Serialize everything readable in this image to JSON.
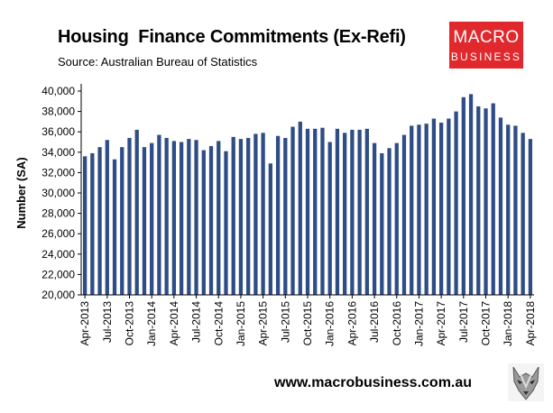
{
  "header": {
    "title": "Housing  Finance Commitments (Ex-Refi)",
    "source": "Source: Australian Bureau of Statistics"
  },
  "logo": {
    "line1": "MACRO",
    "line2": "BUSINESS"
  },
  "footer": {
    "website": "www.macrobusiness.com.au",
    "mascot_icon": "wolf-head-icon"
  },
  "colors": {
    "bar": "#2e4d86",
    "axis": "#000000",
    "logo_bg": "#e0282d"
  },
  "chart_data": {
    "type": "bar",
    "title": "Housing  Finance Commitments (Ex-Refi)",
    "ylabel": "Number (SA)",
    "xlabel": "",
    "ylim": [
      20000,
      40000
    ],
    "yticks": [
      "20,000",
      "22,000",
      "24,000",
      "26,000",
      "28,000",
      "30,000",
      "32,000",
      "34,000",
      "36,000",
      "38,000",
      "40,000"
    ],
    "grid": false,
    "legend": "none",
    "tick_labels": [
      "Apr-2013",
      "Jul-2013",
      "Oct-2013",
      "Jan-2014",
      "Apr-2014",
      "Jul-2014",
      "Oct-2014",
      "Jan-2015",
      "Apr-2015",
      "Jul-2015",
      "Oct-2015",
      "Jan-2016",
      "Apr-2016",
      "Jul-2016",
      "Oct-2016",
      "Jan-2017",
      "Apr-2017",
      "Jul-2017",
      "Oct-2017",
      "Jan-2018",
      "Apr-2018"
    ],
    "categories": [
      "Apr-2013",
      "May-2013",
      "Jun-2013",
      "Jul-2013",
      "Aug-2013",
      "Sep-2013",
      "Oct-2013",
      "Nov-2013",
      "Dec-2013",
      "Jan-2014",
      "Feb-2014",
      "Mar-2014",
      "Apr-2014",
      "May-2014",
      "Jun-2014",
      "Jul-2014",
      "Aug-2014",
      "Sep-2014",
      "Oct-2014",
      "Nov-2014",
      "Dec-2014",
      "Jan-2015",
      "Feb-2015",
      "Mar-2015",
      "Apr-2015",
      "May-2015",
      "Jun-2015",
      "Jul-2015",
      "Aug-2015",
      "Sep-2015",
      "Oct-2015",
      "Nov-2015",
      "Dec-2015",
      "Jan-2016",
      "Feb-2016",
      "Mar-2016",
      "Apr-2016",
      "May-2016",
      "Jun-2016",
      "Jul-2016",
      "Aug-2016",
      "Sep-2016",
      "Oct-2016",
      "Nov-2016",
      "Dec-2016",
      "Jan-2017",
      "Feb-2017",
      "Mar-2017",
      "Apr-2017",
      "May-2017",
      "Jun-2017",
      "Jul-2017",
      "Aug-2017",
      "Sep-2017",
      "Oct-2017",
      "Nov-2017",
      "Dec-2017",
      "Jan-2018",
      "Feb-2018",
      "Mar-2018",
      "Apr-2018"
    ],
    "values": [
      33600,
      33900,
      34500,
      35200,
      33300,
      34500,
      35400,
      36200,
      34500,
      34900,
      35700,
      35400,
      35100,
      35000,
      35300,
      35200,
      34200,
      34600,
      35100,
      34100,
      35500,
      35300,
      35400,
      35800,
      35900,
      32900,
      35600,
      35400,
      36500,
      37000,
      36300,
      36300,
      36400,
      35000,
      36300,
      35900,
      36200,
      36200,
      36300,
      34900,
      33900,
      34400,
      34900,
      35700,
      36600,
      36700,
      36800,
      37300,
      36900,
      37300,
      38000,
      39400,
      39700,
      38500,
      38300,
      38800,
      37400,
      36700,
      36600,
      35900,
      35300
    ]
  }
}
